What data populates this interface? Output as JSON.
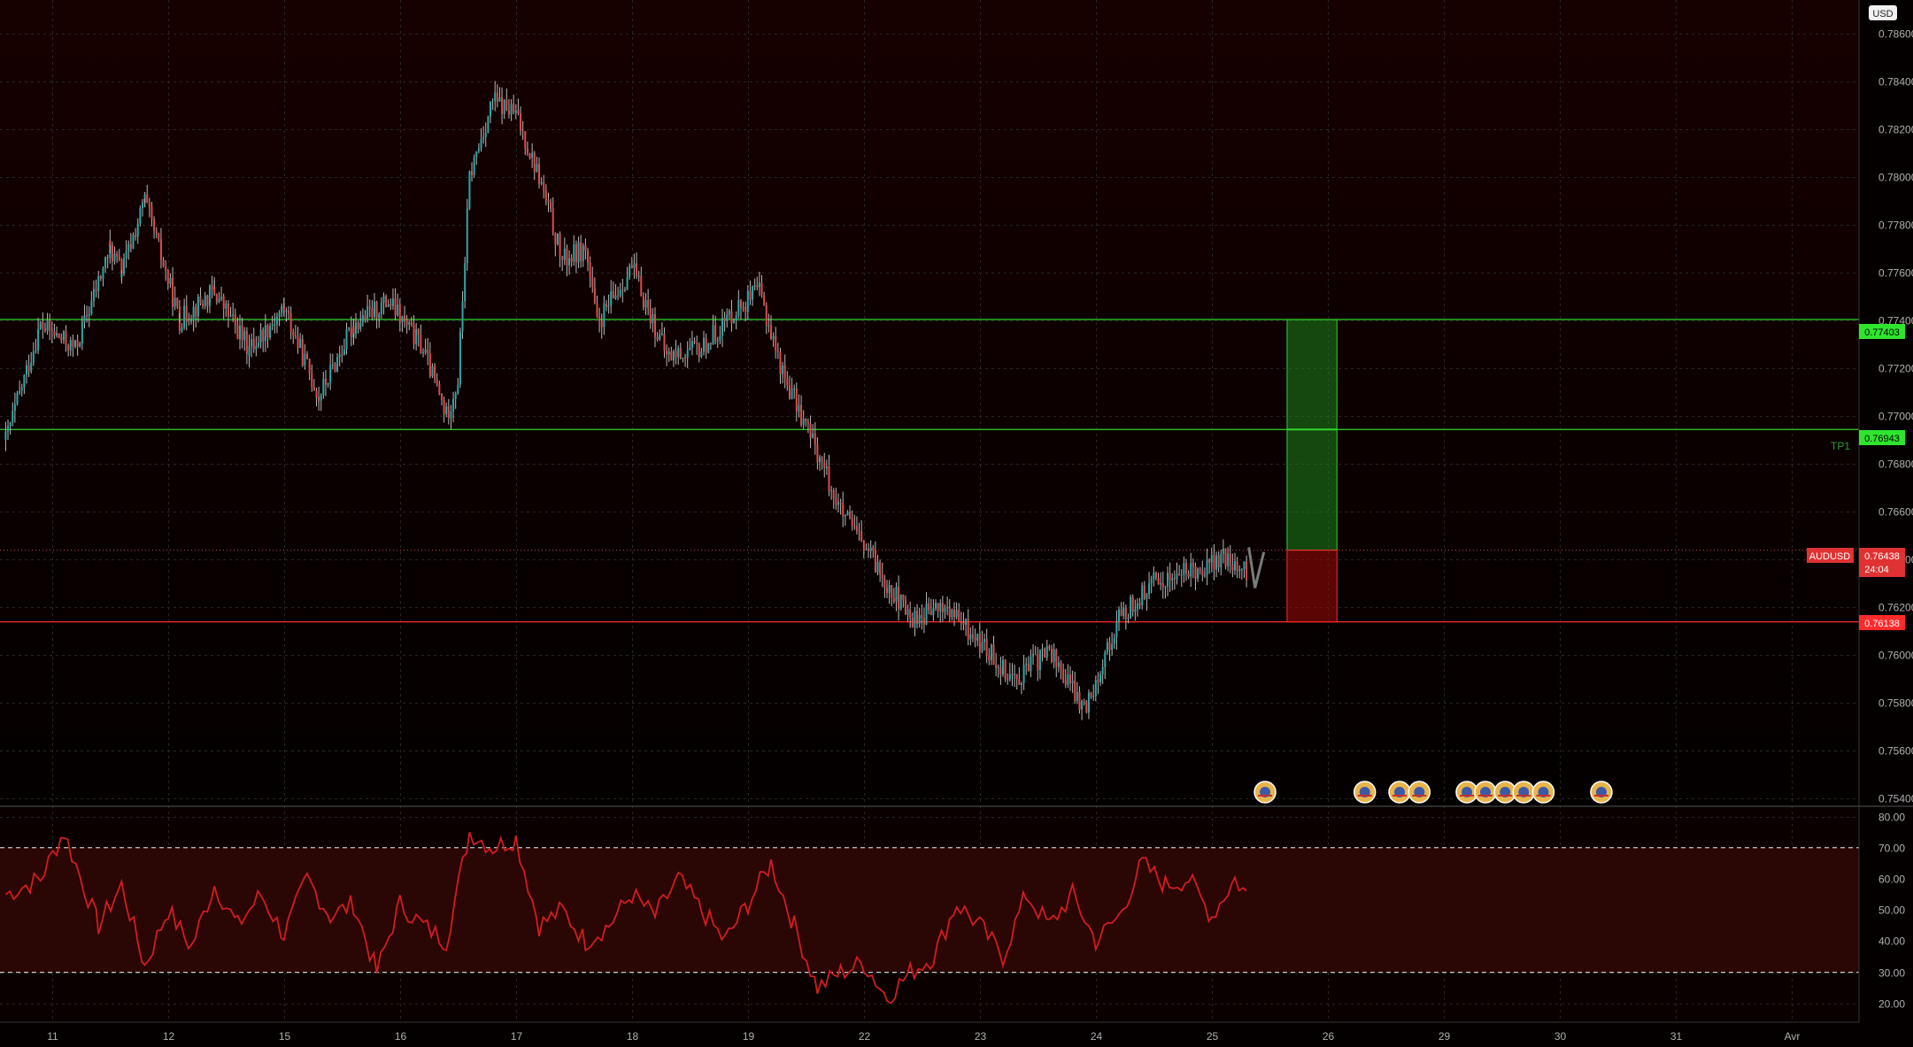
{
  "chart_data": [
    {
      "type": "candlestick",
      "symbol": "AUDUSD",
      "currency_label": "USD",
      "x_ticks": [
        "11",
        "12",
        "15",
        "16",
        "17",
        "18",
        "19",
        "22",
        "23",
        "24",
        "25",
        "26",
        "29",
        "30",
        "31",
        "Avr"
      ],
      "y_ticks": [
        "0.78600",
        "0.78400",
        "0.78200",
        "0.78000",
        "0.77800",
        "0.77600",
        "0.77400",
        "0.77200",
        "0.77000",
        "0.76800",
        "0.76600",
        "0.76400",
        "0.76200",
        "0.76000",
        "0.75800",
        "0.75600",
        "0.75400"
      ],
      "ylim": [
        0.7537,
        0.7874
      ],
      "price_path": [
        [
          0,
          0.769
        ],
        [
          3,
          0.7738
        ],
        [
          6,
          0.7728
        ],
        [
          9,
          0.777
        ],
        [
          10,
          0.776
        ],
        [
          12,
          0.779
        ],
        [
          15,
          0.774
        ],
        [
          18,
          0.7752
        ],
        [
          21,
          0.7728
        ],
        [
          24,
          0.7745
        ],
        [
          27,
          0.7708
        ],
        [
          30,
          0.7738
        ],
        [
          33,
          0.7748
        ],
        [
          36,
          0.7728
        ],
        [
          38,
          0.77
        ],
        [
          39,
          0.7715
        ],
        [
          40,
          0.78
        ],
        [
          42,
          0.7832
        ],
        [
          44,
          0.7826
        ],
        [
          46,
          0.78
        ],
        [
          48,
          0.7765
        ],
        [
          50,
          0.777
        ],
        [
          51,
          0.7738
        ],
        [
          54,
          0.7762
        ],
        [
          57,
          0.7725
        ],
        [
          60,
          0.7728
        ],
        [
          63,
          0.7745
        ],
        [
          65,
          0.7752
        ],
        [
          67,
          0.7718
        ],
        [
          70,
          0.7685
        ],
        [
          72,
          0.766
        ],
        [
          75,
          0.7638
        ],
        [
          78,
          0.7615
        ],
        [
          81,
          0.762
        ],
        [
          84,
          0.7605
        ],
        [
          87,
          0.759
        ],
        [
          90,
          0.7602
        ],
        [
          93,
          0.7577
        ],
        [
          96,
          0.7615
        ],
        [
          99,
          0.763
        ],
        [
          102,
          0.7635
        ],
        [
          105,
          0.764
        ],
        [
          107,
          0.7634
        ]
      ],
      "current_price": 0.76438,
      "countdown": "24:04",
      "price_labels": {
        "take_profit": "0.77403",
        "tp1": "0.76943",
        "current": "0.76438",
        "stop": "0.76138"
      },
      "tp1_label": "TP1",
      "levels": {
        "tp2": 0.77403,
        "tp1": 0.76943,
        "stop": 0.76138
      },
      "position_box": {
        "entry": 0.76438,
        "target": 0.77403,
        "stop": 0.76138
      }
    },
    {
      "type": "line",
      "indicator": "oscillator",
      "y_ticks": [
        "80.00",
        "70.00",
        "60.00",
        "50.00",
        "40.00",
        "30.00",
        "20.00"
      ],
      "ylim": [
        14,
        83
      ],
      "bands": [
        30,
        70
      ],
      "path": [
        [
          0,
          55
        ],
        [
          3,
          60
        ],
        [
          5,
          75
        ],
        [
          8,
          45
        ],
        [
          10,
          58
        ],
        [
          12,
          32
        ],
        [
          14,
          50
        ],
        [
          16,
          38
        ],
        [
          18,
          58
        ],
        [
          20,
          45
        ],
        [
          22,
          55
        ],
        [
          24,
          42
        ],
        [
          26,
          60
        ],
        [
          28,
          48
        ],
        [
          30,
          52
        ],
        [
          32,
          30
        ],
        [
          34,
          52
        ],
        [
          36,
          45
        ],
        [
          38,
          40
        ],
        [
          40,
          75
        ],
        [
          42,
          70
        ],
        [
          44,
          73
        ],
        [
          46,
          45
        ],
        [
          48,
          50
        ],
        [
          50,
          40
        ],
        [
          52,
          45
        ],
        [
          54,
          55
        ],
        [
          56,
          48
        ],
        [
          58,
          60
        ],
        [
          60,
          50
        ],
        [
          62,
          40
        ],
        [
          64,
          52
        ],
        [
          66,
          65
        ],
        [
          68,
          45
        ],
        [
          70,
          25
        ],
        [
          72,
          30
        ],
        [
          74,
          33
        ],
        [
          76,
          22
        ],
        [
          78,
          30
        ],
        [
          80,
          35
        ],
        [
          82,
          52
        ],
        [
          84,
          45
        ],
        [
          86,
          35
        ],
        [
          88,
          55
        ],
        [
          90,
          45
        ],
        [
          92,
          55
        ],
        [
          94,
          40
        ],
        [
          96,
          48
        ],
        [
          98,
          65
        ],
        [
          100,
          58
        ],
        [
          102,
          60
        ],
        [
          104,
          48
        ],
        [
          106,
          60
        ],
        [
          107,
          55
        ]
      ]
    }
  ]
}
